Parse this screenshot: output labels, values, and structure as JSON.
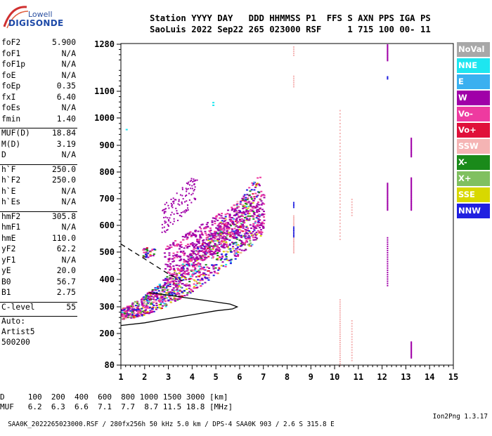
{
  "logo": {
    "line1": "Lowell",
    "line2": "DIGISONDE"
  },
  "header": {
    "line1": "Station YYYY DAY   DDD HHMMSS P1  FFS S AXN PPS IGA PS",
    "line2": "SaoLuis 2022 Sep22 265 023000 RSF     1 715 100 00- 11"
  },
  "params": {
    "group1": [
      {
        "name": "foF2",
        "value": "5.900"
      },
      {
        "name": "foF1",
        "value": "N/A"
      },
      {
        "name": "foF1p",
        "value": "N/A"
      },
      {
        "name": "foE",
        "value": "N/A"
      },
      {
        "name": "foEp",
        "value": "0.35"
      },
      {
        "name": "fxI",
        "value": "6.40"
      },
      {
        "name": "foEs",
        "value": "N/A"
      },
      {
        "name": "fmin",
        "value": "1.40"
      }
    ],
    "group2": [
      {
        "name": "MUF(D)",
        "value": "18.84"
      },
      {
        "name": "M(D)",
        "value": "3.19"
      },
      {
        "name": "D",
        "value": "N/A"
      }
    ],
    "group3": [
      {
        "name": "h`F",
        "value": "250.0"
      },
      {
        "name": "h`F2",
        "value": "250.0"
      },
      {
        "name": "h`E",
        "value": "N/A"
      },
      {
        "name": "h`Es",
        "value": "N/A"
      }
    ],
    "group4": [
      {
        "name": "hmF2",
        "value": "305.8"
      },
      {
        "name": "hmF1",
        "value": "N/A"
      },
      {
        "name": "hmE",
        "value": "110.0"
      },
      {
        "name": "yF2",
        "value": "62.2"
      },
      {
        "name": "yF1",
        "value": "N/A"
      },
      {
        "name": "yE",
        "value": "20.0"
      },
      {
        "name": "B0",
        "value": "56.7"
      },
      {
        "name": "B1",
        "value": "2.75"
      }
    ],
    "clevel": {
      "name": "C-level",
      "value": "55"
    },
    "auto": [
      "Auto:",
      "Artist5",
      "500200"
    ]
  },
  "legend": [
    {
      "label": "NoVal",
      "color": "#a8a8a8"
    },
    {
      "label": "NNE",
      "color": "#1ee6f0"
    },
    {
      "label": "E",
      "color": "#3ab0f0"
    },
    {
      "label": "W",
      "color": "#a000a8"
    },
    {
      "label": "Vo-",
      "color": "#ee3aa0"
    },
    {
      "label": "Vo+",
      "color": "#e0103a"
    },
    {
      "label": "SSW",
      "color": "#f5b4b4"
    },
    {
      "label": "X-",
      "color": "#1a8a1a"
    },
    {
      "label": "X+",
      "color": "#80c060"
    },
    {
      "label": "SSE",
      "color": "#d8d800"
    },
    {
      "label": "NNW",
      "color": "#2020e0"
    }
  ],
  "chart_data": {
    "type": "scatter",
    "title": "",
    "xlim": [
      1,
      15
    ],
    "x_ticks": [
      "1",
      "2",
      "3",
      "4",
      "5",
      "6",
      "7",
      "8",
      "9",
      "10",
      "11",
      "12",
      "13",
      "14",
      "15"
    ],
    "y_ticks": [
      "80",
      "200",
      "300",
      "400",
      "500",
      "600",
      "700",
      "800",
      "900",
      "1000",
      "1100",
      "1280"
    ],
    "ylim_km": [
      80,
      1280
    ],
    "grid": false,
    "profile_curve": [
      [
        1.0,
        230
      ],
      [
        2.0,
        240
      ],
      [
        3.0,
        256
      ],
      [
        4.0,
        270
      ],
      [
        5.0,
        285
      ],
      [
        5.7,
        292
      ],
      [
        5.9,
        300
      ],
      [
        5.6,
        310
      ],
      [
        4.5,
        324
      ],
      [
        3.5,
        336
      ],
      [
        2.8,
        345
      ],
      [
        2.2,
        352
      ]
    ],
    "dashed_curve": [
      [
        1.0,
        530
      ],
      [
        2.0,
        475
      ],
      [
        3.0,
        420
      ],
      [
        3.6,
        395
      ]
    ]
  },
  "bottom": {
    "dline": "D     100  200  400  600  800 1000 1500 3000 [km]",
    "mufline": "MUF   6.2  6.3  6.6  7.1  7.7  8.7 11.5 18.8 [MHz]"
  },
  "footer": {
    "left": "SAA0K_2022265023000.RSF / 280fx256h 50 kHz 5.0 km / DPS-4 SAA0K 903 / 2.6 S 315.8 E",
    "right": "Ion2Png 1.3.17"
  }
}
